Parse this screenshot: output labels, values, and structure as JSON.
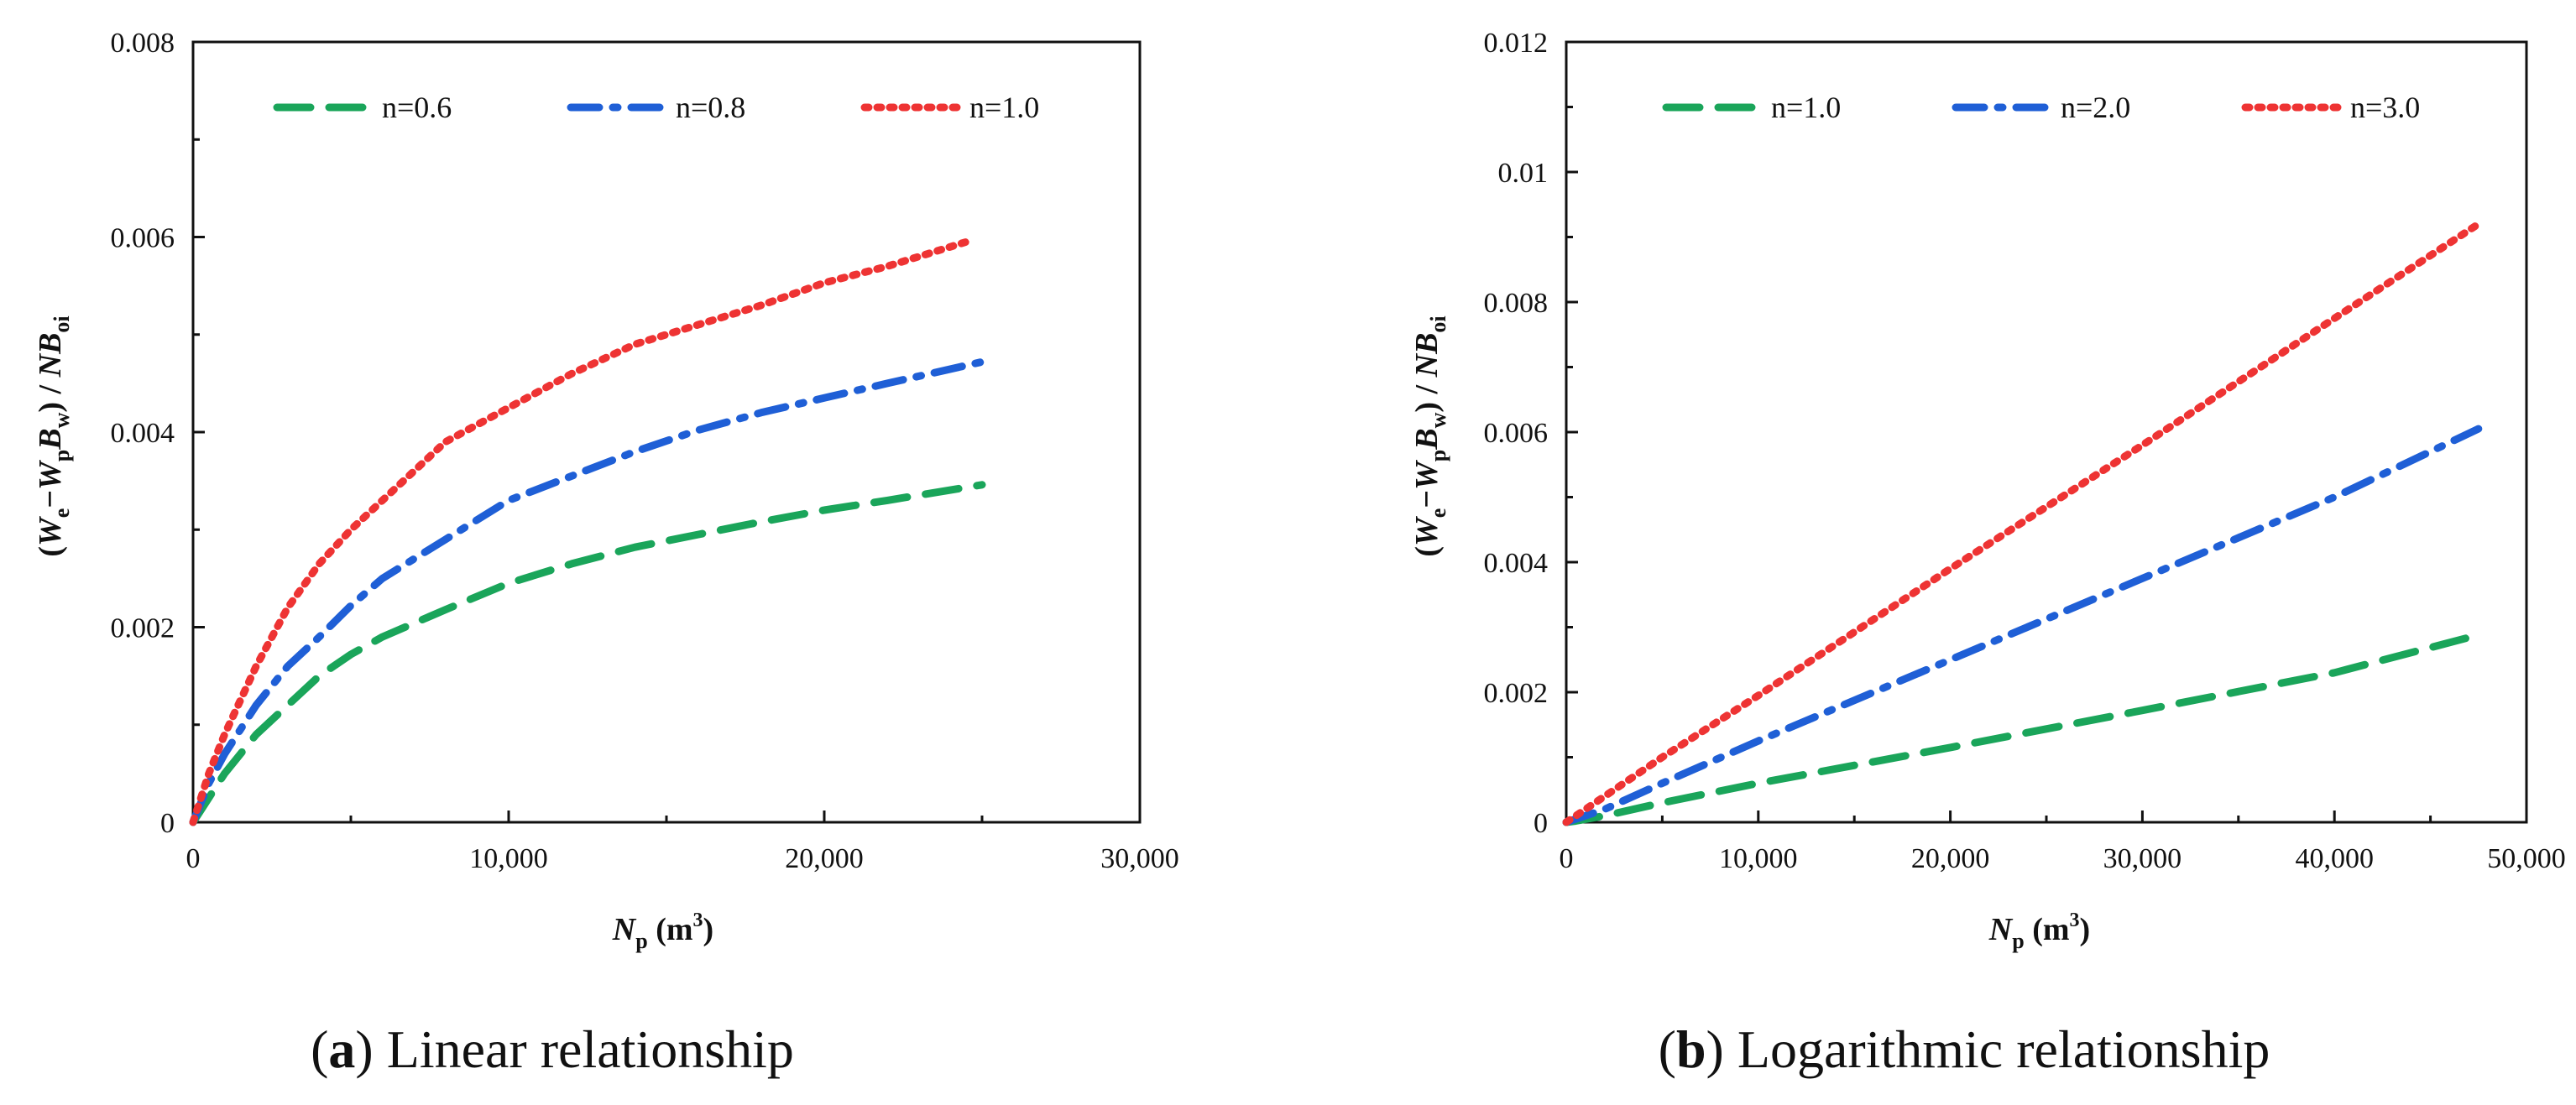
{
  "chart_data": [
    {
      "type": "line",
      "caption_letter": "a",
      "caption_text": "Linear relationship",
      "xlabel_main": "N",
      "xlabel_sub": "p",
      "xlabel_unit": " (m",
      "xlabel_sup": "3",
      "xlabel_close": ")",
      "ylabel": "(We−WpBw) / NBoi",
      "xlim": [
        0,
        30000
      ],
      "ylim": [
        0,
        0.008
      ],
      "x_ticks": [
        "0",
        "10,000",
        "20,000",
        "30,000"
      ],
      "y_ticks": [
        "0",
        "0.002",
        "0.004",
        "0.006",
        "0.008"
      ],
      "legend_position": "top",
      "series": [
        {
          "name": "n=0.6",
          "color": "#1aa55a",
          "style": "dashed",
          "x": [
            0,
            500,
            1000,
            2000,
            3000,
            4000,
            5000,
            6000,
            8000,
            10000,
            12000,
            14000,
            16000,
            18000,
            20000,
            22000,
            25000
          ],
          "y": [
            0,
            0.00025,
            0.0005,
            0.0009,
            0.0012,
            0.0015,
            0.00172,
            0.0019,
            0.00218,
            0.00245,
            0.00265,
            0.00282,
            0.00295,
            0.00308,
            0.0032,
            0.0033,
            0.00346
          ]
        },
        {
          "name": "n=0.8",
          "color": "#1f5fd6",
          "style": "dashdot",
          "x": [
            0,
            500,
            1000,
            2000,
            3000,
            4000,
            5000,
            6000,
            8000,
            10000,
            12000,
            14000,
            16000,
            18000,
            20000,
            22000,
            25000
          ],
          "y": [
            0,
            0.0004,
            0.0007,
            0.0012,
            0.0016,
            0.0019,
            0.00222,
            0.0025,
            0.0029,
            0.0033,
            0.00355,
            0.0038,
            0.00402,
            0.0042,
            0.00435,
            0.0045,
            0.00472
          ]
        },
        {
          "name": "n=1.0",
          "color": "#ee3333",
          "style": "dotted",
          "x": [
            0,
            500,
            1000,
            2000,
            3000,
            4000,
            5000,
            6000,
            8000,
            10000,
            12000,
            14000,
            16000,
            18000,
            20000,
            22000,
            24500
          ],
          "y": [
            0,
            0.0005,
            0.0009,
            0.0016,
            0.0022,
            0.00265,
            0.003,
            0.0033,
            0.0039,
            0.00425,
            0.0046,
            0.0049,
            0.0051,
            0.0053,
            0.00553,
            0.0057,
            0.00595
          ]
        }
      ]
    },
    {
      "type": "line",
      "caption_letter": "b",
      "caption_text": "Logarithmic relationship",
      "xlabel_main": "N",
      "xlabel_sub": "p",
      "xlabel_unit": " (m",
      "xlabel_sup": "3",
      "xlabel_close": ")",
      "ylabel": "(We−WpBw) / NBoi",
      "xlim": [
        0,
        50000
      ],
      "ylim": [
        0,
        0.012
      ],
      "x_ticks": [
        "0",
        "10,000",
        "20,000",
        "30,000",
        "40,000",
        "50,000"
      ],
      "y_ticks": [
        "0",
        "0.002",
        "0.004",
        "0.006",
        "0.008",
        "0.01",
        "0.012"
      ],
      "legend_position": "top",
      "series": [
        {
          "name": "n=1.0",
          "color": "#1aa55a",
          "style": "dashed",
          "x": [
            0,
            500,
            2000,
            5000,
            10000,
            20000,
            30000,
            40000,
            47500
          ],
          "y": [
            0,
            2e-05,
            0.0001,
            0.0003,
            0.0006,
            0.00115,
            0.00172,
            0.0023,
            0.00288
          ]
        },
        {
          "name": "n=2.0",
          "color": "#1f5fd6",
          "style": "dashdot",
          "x": [
            0,
            500,
            2000,
            5000,
            10000,
            20000,
            30000,
            40000,
            47500
          ],
          "y": [
            0,
            5e-05,
            0.0002,
            0.0006,
            0.00125,
            0.0025,
            0.00375,
            0.005,
            0.00605
          ]
        },
        {
          "name": "n=3.0",
          "color": "#ee3333",
          "style": "dotted",
          "x": [
            0,
            500,
            2000,
            5000,
            10000,
            20000,
            30000,
            40000,
            47500
          ],
          "y": [
            0,
            0.0001,
            0.0004,
            0.001,
            0.00195,
            0.0039,
            0.0058,
            0.00775,
            0.0092
          ]
        }
      ]
    }
  ]
}
